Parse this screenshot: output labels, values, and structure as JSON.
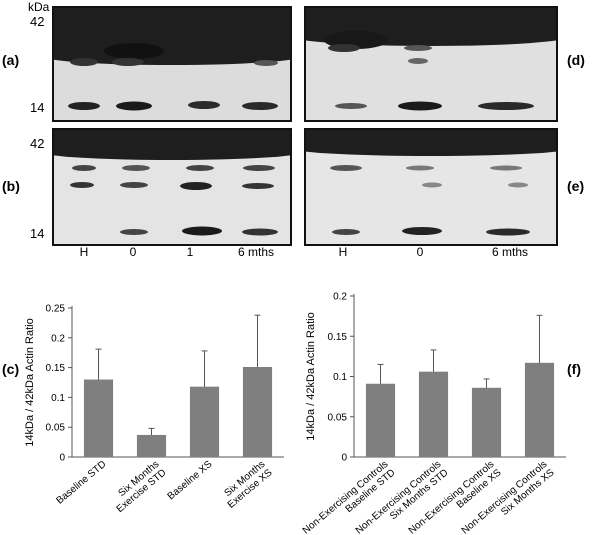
{
  "blots": {
    "kda_unit": "kDa",
    "marker_high": "42",
    "marker_low": "14",
    "panel_a": "(a)",
    "panel_b": "(b)",
    "panel_d": "(d)",
    "panel_e": "(e)",
    "left_lanes": [
      "H",
      "0",
      "1",
      "6 mths"
    ],
    "right_lanes": [
      "H",
      "0",
      "6 mths"
    ]
  },
  "chart_data": [
    {
      "type": "bar",
      "panel": "(c)",
      "title": "",
      "xlabel": "",
      "ylabel": "14kDa / 42kDa Actin Ratio",
      "ylim": [
        0,
        0.25
      ],
      "yticks": [
        "0",
        "0.05",
        "0.1",
        "0.15",
        "0.2",
        "0.25"
      ],
      "categories": [
        [
          "Baseline STD"
        ],
        [
          "Six Months",
          "Exercise STD"
        ],
        [
          "Baseline XS"
        ],
        [
          "Six Months",
          "Exercise XS"
        ]
      ],
      "values": [
        0.13,
        0.037,
        0.118,
        0.151
      ],
      "error": [
        0.051,
        0.011,
        0.06,
        0.087
      ],
      "bar_color": "#7f7f7f"
    },
    {
      "type": "bar",
      "panel": "(f)",
      "title": "",
      "xlabel": "",
      "ylabel": "14kDa / 42kDa Actin Ratio",
      "ylim": [
        0,
        0.2
      ],
      "yticks": [
        "0",
        "0.05",
        "0.1",
        "0.15",
        "0.2"
      ],
      "categories": [
        [
          "Non-Exercising Controls",
          "Baseline STD"
        ],
        [
          "Non-Exercising Controls",
          "Six Months STD"
        ],
        [
          "Non-Exercising Controls",
          "Baseline XS"
        ],
        [
          "Non-Exercising Controls",
          "Six Months XS"
        ]
      ],
      "values": [
        0.091,
        0.106,
        0.086,
        0.117
      ],
      "error": [
        0.024,
        0.027,
        0.011,
        0.059
      ],
      "bar_color": "#7f7f7f"
    }
  ]
}
